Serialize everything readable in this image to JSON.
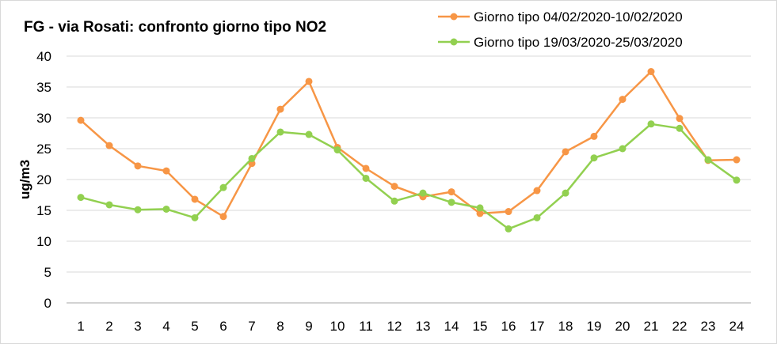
{
  "chart_data": {
    "type": "line",
    "title": "FG - via Rosati: confronto giorno tipo NO2",
    "xlabel": "",
    "ylabel": "ug/m3",
    "ylim": [
      0,
      40
    ],
    "yticks": [
      0,
      5,
      10,
      15,
      20,
      25,
      30,
      35,
      40
    ],
    "grid": "horizontal",
    "legend_position": "top-right",
    "x": [
      1,
      2,
      3,
      4,
      5,
      6,
      7,
      8,
      9,
      10,
      11,
      12,
      13,
      14,
      15,
      16,
      17,
      18,
      19,
      20,
      21,
      22,
      23,
      24
    ],
    "series": [
      {
        "name": "Giorno tipo 04/02/2020-10/02/2020",
        "color": "#f79646",
        "values": [
          29.6,
          25.5,
          22.2,
          21.4,
          16.8,
          14.0,
          22.6,
          31.4,
          35.9,
          25.2,
          21.8,
          18.9,
          17.2,
          18.0,
          14.5,
          14.8,
          18.2,
          24.5,
          27.0,
          33.0,
          37.5,
          29.9,
          23.1,
          23.2
        ]
      },
      {
        "name": "Giorno tipo 19/03/2020-25/03/2020",
        "color": "#92d050",
        "values": [
          17.1,
          15.9,
          15.1,
          15.2,
          13.8,
          18.7,
          23.4,
          27.7,
          27.3,
          24.8,
          20.2,
          16.5,
          17.8,
          16.3,
          15.4,
          12.0,
          13.8,
          17.8,
          23.5,
          25.0,
          29.0,
          28.3,
          23.2,
          19.9
        ]
      }
    ]
  }
}
